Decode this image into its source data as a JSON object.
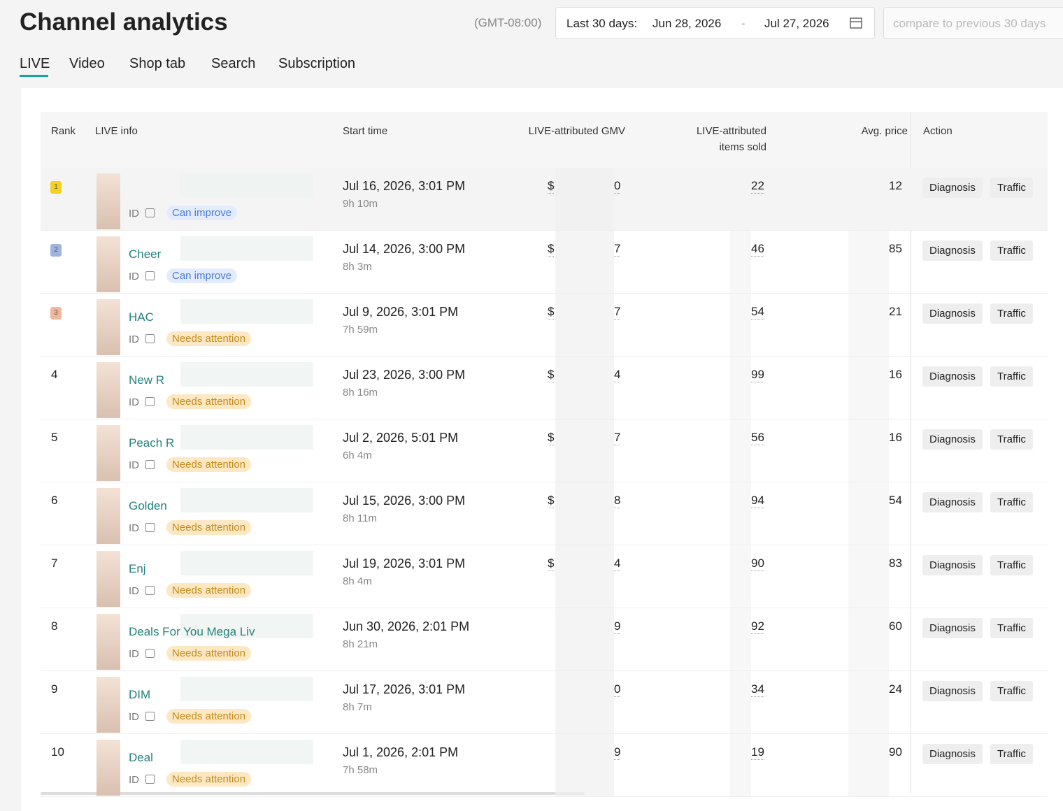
{
  "header": {
    "title": "Channel analytics",
    "timezone": "(GMT-08:00)",
    "date_label": "Last 30 days:",
    "date_start": "Jun 28, 2026",
    "date_separator": "-",
    "date_end": "Jul 27, 2026",
    "compare": "compare to previous 30 days"
  },
  "tabs": {
    "items": [
      "LIVE",
      "Video",
      "Shop tab",
      "Search",
      "Subscription"
    ],
    "active": 0
  },
  "table": {
    "columns": [
      "Rank",
      "LIVE info",
      "Start time",
      "LIVE-attributed GMV",
      "LIVE-attributed items sold",
      "Avg. price",
      "Action"
    ],
    "id_label": "ID",
    "actions": [
      "Diagnosis",
      "Traffic"
    ],
    "rows": [
      {
        "rank": "1",
        "status": "Can improve",
        "start": "Jul 16, 2026, 3:01 PM",
        "duration": "9h 10m",
        "gmv_prefix": "$",
        "gmv": "0",
        "items": "22",
        "avg": "12"
      },
      {
        "rank": "2",
        "name": "Cheer",
        "status": "Can improve",
        "start": "Jul 14, 2026, 3:00 PM",
        "duration": "8h 3m",
        "gmv_prefix": "$",
        "gmv": "7",
        "items": "46",
        "avg": "85"
      },
      {
        "rank": "3",
        "name": "HAC",
        "status": "Needs attention",
        "start": "Jul 9, 2026, 3:01 PM",
        "duration": "7h 59m",
        "gmv_prefix": "$",
        "gmv": "7",
        "items": "54",
        "avg": "21"
      },
      {
        "rank": "4",
        "name": "New R",
        "status": "Needs attention",
        "start": "Jul 23, 2026, 3:00 PM",
        "duration": "8h 16m",
        "gmv_prefix": "$",
        "gmv": "4",
        "items": "99",
        "avg": "16"
      },
      {
        "rank": "5",
        "name": "Peach R",
        "status": "Needs attention",
        "start": "Jul 2, 2026, 5:01 PM",
        "duration": "6h 4m",
        "gmv_prefix": "$",
        "gmv": "7",
        "items": "56",
        "avg": "16"
      },
      {
        "rank": "6",
        "name": "Golden",
        "status": "Needs attention",
        "start": "Jul 15, 2026, 3:00 PM",
        "duration": "8h 11m",
        "gmv_prefix": "$",
        "gmv": "8",
        "items": "94",
        "avg": "54"
      },
      {
        "rank": "7",
        "name": "Enj",
        "status": "Needs attention",
        "start": "Jul 19, 2026, 3:01 PM",
        "duration": "8h 4m",
        "gmv_prefix": "$",
        "gmv": "4",
        "items": "90",
        "avg": "83"
      },
      {
        "rank": "8",
        "name": "Deals For You Mega Liv",
        "status": "Needs attention",
        "start": "Jun 30, 2026, 2:01 PM",
        "duration": "8h 21m",
        "gmv": "9",
        "items": "92",
        "avg": "60"
      },
      {
        "rank": "9",
        "name": "DIM",
        "status": "Needs attention",
        "start": "Jul 17, 2026, 3:01 PM",
        "duration": "8h 7m",
        "gmv": "0",
        "items": "34",
        "avg": "24"
      },
      {
        "rank": "10",
        "name": "Deal",
        "status": "Needs attention",
        "start": "Jul 1, 2026, 2:01 PM",
        "duration": "7h 58m",
        "gmv": "9",
        "items": "19",
        "avg": "90"
      }
    ]
  }
}
